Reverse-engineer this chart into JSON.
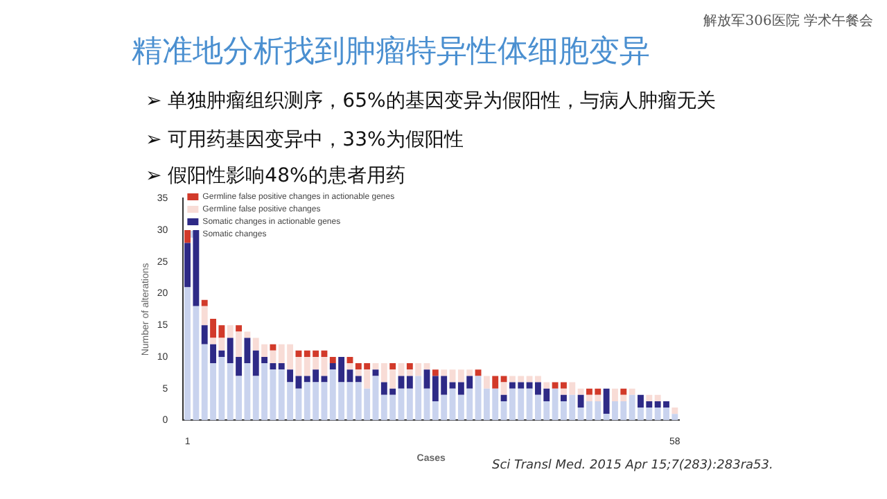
{
  "chart_data": {
    "type": "bar",
    "title": "精准地分析找到肿瘤特异性体细胞变异",
    "annotations": [
      "解放军306医院 学术午餐会",
      "➢ 单独肿瘤组织测序，65%的基因变异为假阳性，与病人肿瘤无关",
      "➢ 可用药基因变异中，33%为假阳性",
      "➢ 假阳性影响48%的患者用药",
      "Sci Transl Med. 2015 Apr 15;7(283):283ra53."
    ],
    "xlabel": "Cases",
    "ylabel": "Number of alterations",
    "categories": [
      "1",
      null,
      null,
      null,
      null,
      null,
      null,
      null,
      null,
      null,
      null,
      null,
      null,
      null,
      null,
      null,
      null,
      null,
      null,
      null,
      null,
      null,
      null,
      null,
      null,
      null,
      null,
      null,
      null,
      null,
      null,
      null,
      null,
      null,
      null,
      null,
      null,
      null,
      null,
      null,
      null,
      null,
      null,
      null,
      null,
      null,
      null,
      null,
      null,
      null,
      null,
      null,
      null,
      null,
      null,
      null,
      null,
      "58"
    ],
    "stacked": true,
    "ylim": [
      0,
      35
    ],
    "yticks": [
      0,
      5,
      10,
      15,
      20,
      25,
      30,
      35
    ],
    "grid": false,
    "legend": "top left",
    "series": [
      {
        "name": "Somatic changes",
        "color": "#c9d3ee",
        "values": [
          21,
          18,
          12,
          9,
          10,
          9,
          7,
          9,
          7,
          9,
          8,
          8,
          6,
          5,
          6,
          6,
          6,
          8,
          6,
          6,
          6,
          5,
          7,
          4,
          4,
          5,
          5,
          7,
          5,
          3,
          4,
          5,
          4,
          5,
          7,
          5,
          5,
          3,
          5,
          5,
          5,
          4,
          3,
          5,
          3,
          4,
          2,
          3,
          3,
          1,
          3,
          3,
          4,
          2,
          2,
          2,
          2,
          1
        ]
      },
      {
        "name": "Somatic changes in actionable genes",
        "color": "#2e2a86",
        "values": [
          7,
          12,
          3,
          3,
          1,
          4,
          3,
          4,
          4,
          1,
          1,
          1,
          2,
          2,
          1,
          2,
          1,
          1,
          4,
          2,
          1,
          0,
          1,
          2,
          1,
          2,
          2,
          0,
          3,
          4,
          3,
          1,
          2,
          2,
          0,
          0,
          0,
          1,
          1,
          1,
          1,
          2,
          2,
          0,
          1,
          0,
          2,
          0,
          0,
          4,
          0,
          0,
          0,
          2,
          1,
          1,
          1,
          0
        ]
      },
      {
        "name": "Germline false positive changes",
        "color": "#f8dcd6",
        "values": [
          0,
          0,
          3,
          1,
          2,
          2,
          4,
          1,
          2,
          2,
          2,
          3,
          4,
          3,
          3,
          2,
          3,
          0,
          0,
          1,
          1,
          3,
          1,
          3,
          3,
          2,
          1,
          2,
          1,
          0,
          1,
          2,
          2,
          1,
          0,
          2,
          0,
          2,
          1,
          1,
          1,
          1,
          1,
          0,
          1,
          2,
          1,
          1,
          1,
          0,
          2,
          1,
          1,
          0,
          1,
          1,
          0,
          1
        ]
      },
      {
        "name": "Germline false positive changes in actionable genes",
        "color": "#d23a2a",
        "values": [
          2,
          0,
          1,
          3,
          2,
          0,
          1,
          0,
          0,
          0,
          1,
          0,
          0,
          1,
          1,
          1,
          1,
          1,
          0,
          1,
          1,
          1,
          0,
          0,
          1,
          0,
          1,
          0,
          0,
          1,
          0,
          0,
          0,
          0,
          1,
          0,
          2,
          1,
          0,
          0,
          0,
          0,
          0,
          1,
          1,
          0,
          0,
          1,
          1,
          0,
          0,
          1,
          0,
          0,
          0,
          0,
          0,
          0
        ]
      }
    ]
  }
}
